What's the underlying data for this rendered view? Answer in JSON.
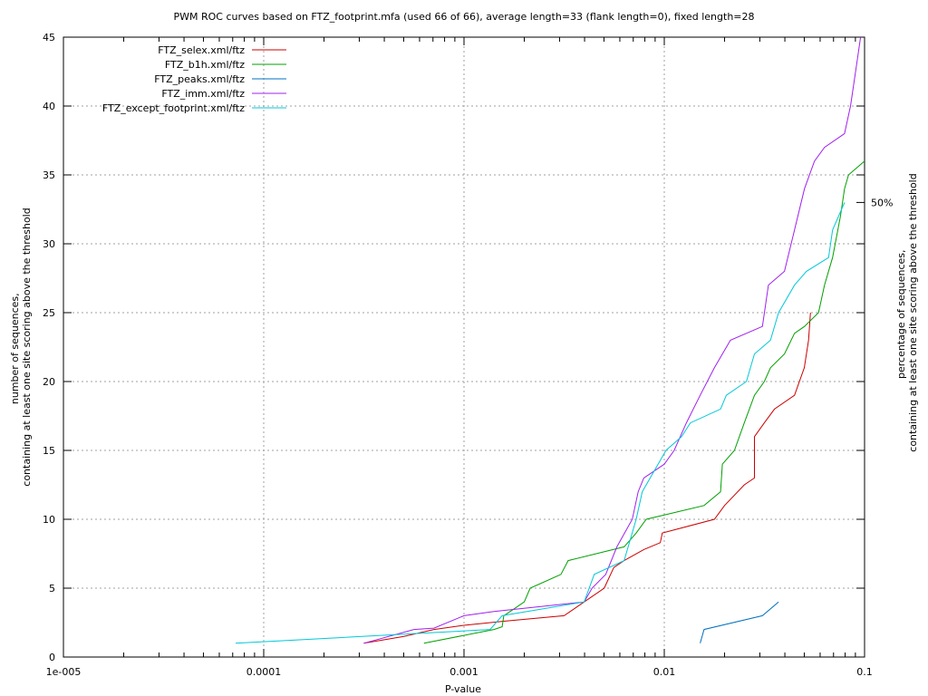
{
  "chart_data": {
    "type": "line",
    "title": "PWM ROC curves based on FTZ_footprint.mfa (used 66 of 66), average length=33 (flank length=0), fixed length=28",
    "xlabel": "P-value",
    "ylabel_lines": [
      "number of sequences,",
      "containing at least one site scoring above the threshold"
    ],
    "y2label_lines": [
      "percentage of sequences,",
      "containing at least one site scoring above the threshold"
    ],
    "x_scale": "log",
    "xlim": [
      1e-05,
      0.1
    ],
    "ylim": [
      0,
      45
    ],
    "x_ticks": [
      {
        "value": 1e-05,
        "label": "1e-005"
      },
      {
        "value": 0.0001,
        "label": "0.0001"
      },
      {
        "value": 0.001,
        "label": "0.001"
      },
      {
        "value": 0.01,
        "label": "0.01"
      },
      {
        "value": 0.1,
        "label": "0.1"
      }
    ],
    "y_ticks": [
      0,
      5,
      10,
      15,
      20,
      25,
      30,
      35,
      40,
      45
    ],
    "y2_ticks": [
      {
        "value": 33,
        "label": "50%"
      }
    ],
    "grid": true,
    "legend_position": "top-left",
    "series": [
      {
        "name": "FTZ_selex.xml/ftz",
        "color": "#cc0000",
        "points": [
          [
            0.000316,
            1
          ],
          [
            0.000501,
            1.5
          ],
          [
            0.000708,
            2
          ],
          [
            0.001,
            2.3
          ],
          [
            0.00158,
            2.6
          ],
          [
            0.00316,
            3
          ],
          [
            0.00398,
            4
          ],
          [
            0.00501,
            5
          ],
          [
            0.0056,
            6.5
          ],
          [
            0.0063,
            7
          ],
          [
            0.0079,
            7.8
          ],
          [
            0.00955,
            8.3
          ],
          [
            0.00977,
            9
          ],
          [
            0.0178,
            10
          ],
          [
            0.02,
            11
          ],
          [
            0.0251,
            12.5
          ],
          [
            0.0282,
            13
          ],
          [
            0.0282,
            16
          ],
          [
            0.0316,
            17
          ],
          [
            0.0355,
            18
          ],
          [
            0.0447,
            19
          ],
          [
            0.05,
            21
          ],
          [
            0.0525,
            23
          ],
          [
            0.0537,
            25
          ]
        ]
      },
      {
        "name": "FTZ_b1h.xml/ftz",
        "color": "#00a000",
        "points": [
          [
            0.000631,
            1
          ],
          [
            0.00141,
            2
          ],
          [
            0.00155,
            2.2
          ],
          [
            0.00158,
            3
          ],
          [
            0.00178,
            3.5
          ],
          [
            0.002,
            4
          ],
          [
            0.00214,
            5
          ],
          [
            0.00305,
            6
          ],
          [
            0.00331,
            7
          ],
          [
            0.0063,
            8
          ],
          [
            0.00724,
            9
          ],
          [
            0.00813,
            10
          ],
          [
            0.0158,
            11
          ],
          [
            0.0191,
            12
          ],
          [
            0.0195,
            14
          ],
          [
            0.0224,
            15
          ],
          [
            0.0251,
            17
          ],
          [
            0.0282,
            19
          ],
          [
            0.0316,
            20
          ],
          [
            0.0339,
            21
          ],
          [
            0.0398,
            22
          ],
          [
            0.0447,
            23.5
          ],
          [
            0.0501,
            24
          ],
          [
            0.0589,
            25
          ],
          [
            0.0631,
            27
          ],
          [
            0.0692,
            29
          ],
          [
            0.0758,
            32
          ],
          [
            0.0794,
            34
          ],
          [
            0.0832,
            35
          ],
          [
            0.1,
            36
          ]
        ]
      },
      {
        "name": "FTZ_peaks.xml/ftz",
        "color": "#0070c0",
        "points": [
          [
            0.0151,
            1
          ],
          [
            0.0158,
            2
          ],
          [
            0.0309,
            3
          ],
          [
            0.0372,
            4
          ]
        ]
      },
      {
        "name": "FTZ_imm.xml/ftz",
        "color": "#a020f0",
        "points": [
          [
            0.000316,
            1
          ],
          [
            0.000562,
            2
          ],
          [
            0.000708,
            2.1
          ],
          [
            0.001,
            3
          ],
          [
            0.00141,
            3.3
          ],
          [
            0.00398,
            4
          ],
          [
            0.00436,
            5
          ],
          [
            0.0051,
            6
          ],
          [
            0.0058,
            8
          ],
          [
            0.00692,
            10
          ],
          [
            0.00741,
            12
          ],
          [
            0.0079,
            13
          ],
          [
            0.01,
            14
          ],
          [
            0.0112,
            15
          ],
          [
            0.0129,
            17
          ],
          [
            0.0151,
            19
          ],
          [
            0.0178,
            21
          ],
          [
            0.0214,
            23
          ],
          [
            0.0309,
            24
          ],
          [
            0.0331,
            27
          ],
          [
            0.0398,
            28
          ],
          [
            0.0447,
            31
          ],
          [
            0.0501,
            34
          ],
          [
            0.0562,
            36
          ],
          [
            0.0631,
            37
          ],
          [
            0.0794,
            38
          ],
          [
            0.0851,
            40
          ],
          [
            0.0912,
            43
          ],
          [
            0.0955,
            45
          ]
        ]
      },
      {
        "name": "FTZ_except_footprint.xml/ftz",
        "color": "#00c8d8",
        "points": [
          [
            7.24e-05,
            1
          ],
          [
            0.00135,
            2
          ],
          [
            0.00155,
            3
          ],
          [
            0.00398,
            4
          ],
          [
            0.00447,
            6
          ],
          [
            0.0063,
            7
          ],
          [
            0.00724,
            10
          ],
          [
            0.00776,
            12
          ],
          [
            0.0102,
            15
          ],
          [
            0.0122,
            16
          ],
          [
            0.0135,
            17
          ],
          [
            0.0191,
            18
          ],
          [
            0.0204,
            19
          ],
          [
            0.0257,
            20
          ],
          [
            0.0282,
            22
          ],
          [
            0.0339,
            23
          ],
          [
            0.0372,
            25
          ],
          [
            0.0447,
            27
          ],
          [
            0.0513,
            28
          ],
          [
            0.0661,
            29
          ],
          [
            0.0692,
            31
          ],
          [
            0.0794,
            33
          ]
        ]
      }
    ]
  }
}
